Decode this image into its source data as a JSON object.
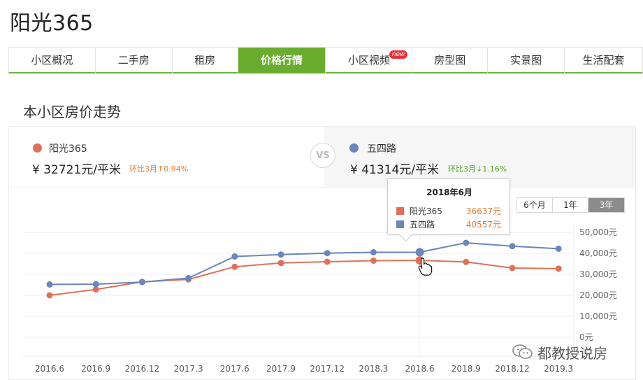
{
  "page": {
    "title": "阳光365"
  },
  "tabs": [
    {
      "label": "小区概况",
      "active": false,
      "badge": ""
    },
    {
      "label": "二手房",
      "active": false,
      "badge": ""
    },
    {
      "label": "租房",
      "active": false,
      "badge": ""
    },
    {
      "label": "价格行情",
      "active": true,
      "badge": ""
    },
    {
      "label": "小区视频",
      "active": false,
      "badge": "new"
    },
    {
      "label": "房型图",
      "active": false,
      "badge": ""
    },
    {
      "label": "实景图",
      "active": false,
      "badge": ""
    },
    {
      "label": "生活配套",
      "active": false,
      "badge": ""
    }
  ],
  "section": {
    "title": "本小区房价走势"
  },
  "compare": {
    "left": {
      "name": "阳光365",
      "price": "¥ 32721元/平米",
      "change": "环比3月↑0.94%",
      "change_color": "#e07a32",
      "color": "#e0705a"
    },
    "vs": "VS",
    "right": {
      "name": "五四路",
      "price": "¥ 41314元/平米",
      "change": "环比3月↓1.16%",
      "change_color": "#5aa02c",
      "color": "#6a86bd"
    }
  },
  "range": [
    {
      "label": "6个月",
      "active": false
    },
    {
      "label": "1年",
      "active": false
    },
    {
      "label": "3年",
      "active": true
    }
  ],
  "tooltip": {
    "date": "2018年6月",
    "rows": [
      {
        "name": "阳光365",
        "value": "36637元",
        "color": "#e0705a"
      },
      {
        "name": "五四路",
        "value": "40557元",
        "color": "#6a86bd"
      }
    ]
  },
  "watermark": {
    "text": "都教授说房",
    "icon": "wechat-icon"
  },
  "chart_data": {
    "type": "line",
    "x": [
      "2016.6",
      "2016.9",
      "2016.12",
      "2017.3",
      "2017.6",
      "2017.9",
      "2017.12",
      "2018.3",
      "2018.6",
      "2018.9",
      "2018.12",
      "2019.3"
    ],
    "series": [
      {
        "name": "阳光365",
        "color": "#e0705a",
        "values": [
          20000,
          22800,
          26400,
          27600,
          33600,
          35400,
          36000,
          36500,
          36637,
          35900,
          33000,
          32721
        ]
      },
      {
        "name": "五四路",
        "color": "#6a86bd",
        "values": [
          25200,
          25300,
          26300,
          28200,
          38500,
          39400,
          40100,
          40500,
          40557,
          45000,
          43400,
          42200
        ]
      }
    ],
    "y_ticks": [
      "50,000元",
      "40,000元",
      "30,000元",
      "20,000元",
      "10,000元",
      "0元"
    ],
    "ylim": [
      0,
      50000
    ],
    "highlight_index": 8
  }
}
